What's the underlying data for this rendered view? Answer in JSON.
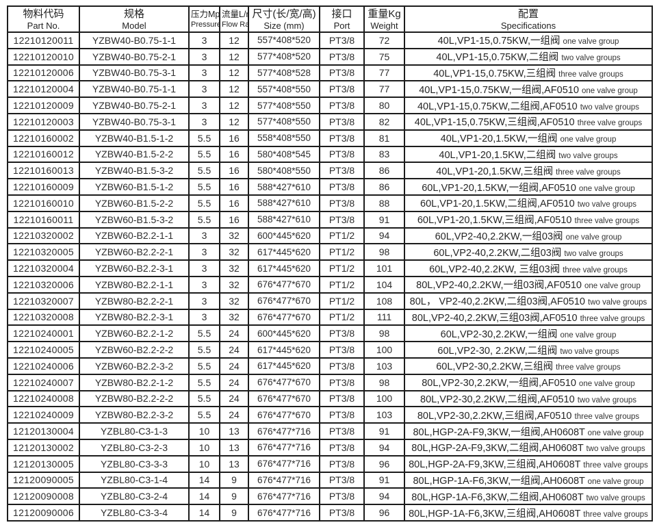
{
  "table": {
    "headers": [
      {
        "cn": "物料代码",
        "en": "Part No."
      },
      {
        "cn": "规格",
        "en": "Model"
      },
      {
        "cn": "压力Mpa",
        "en": "Pressure"
      },
      {
        "cn": "流量L/min",
        "en": "Flow Rate"
      },
      {
        "cn": "尺寸(长/宽/高)",
        "en": "Size (mm)"
      },
      {
        "cn": "接口",
        "en": "Port"
      },
      {
        "cn": "重量Kg",
        "en": "Weight"
      },
      {
        "cn": "配置",
        "en": "Specifications"
      }
    ],
    "rows": [
      {
        "part_no": "12210120011",
        "model": "YZBW40-B0.75-1-1",
        "pressure": "3",
        "flow_rate": "12",
        "size": "557*408*520",
        "port": "PT3/8",
        "weight": "72",
        "spec": "40L,VP1-15,0.75KW,一组阀",
        "spec_en": "one valve group"
      },
      {
        "part_no": "12210120010",
        "model": "YZBW40-B0.75-2-1",
        "pressure": "3",
        "flow_rate": "12",
        "size": "577*408*520",
        "port": "PT3/8",
        "weight": "75",
        "spec": "40L,VP1-15,0.75KW,二组阀",
        "spec_en": "two valve groups"
      },
      {
        "part_no": "12210120006",
        "model": "YZBW40-B0.75-3-1",
        "pressure": "3",
        "flow_rate": "12",
        "size": "577*408*528",
        "port": "PT3/8",
        "weight": "77",
        "spec": "40L,VP1-15,0.75KW,三组阀",
        "spec_en": "three valve groups"
      },
      {
        "part_no": "12210120004",
        "model": "YZBW40-B0.75-1-1",
        "pressure": "3",
        "flow_rate": "12",
        "size": "557*408*550",
        "port": "PT3/8",
        "weight": "77",
        "spec": "40L,VP1-15,0.75KW,一组阀,AF0510",
        "spec_en": "one valve group"
      },
      {
        "part_no": "12210120009",
        "model": "YZBW40-B0.75-2-1",
        "pressure": "3",
        "flow_rate": "12",
        "size": "577*408*550",
        "port": "PT3/8",
        "weight": "80",
        "spec": "40L,VP1-15,0.75KW,二组阀,AF0510",
        "spec_en": "two valve groups"
      },
      {
        "part_no": "12210120003",
        "model": "YZBW40-B0.75-3-1",
        "pressure": "3",
        "flow_rate": "12",
        "size": "577*408*550",
        "port": "PT3/8",
        "weight": "82",
        "spec": "40L,VP1-15,0.75KW,三组阀,AF0510",
        "spec_en": "three valve groups"
      },
      {
        "part_no": "12210160002",
        "model": "YZBW40-B1.5-1-2",
        "pressure": "5.5",
        "flow_rate": "16",
        "size": "558*408*550",
        "port": "PT3/8",
        "weight": "81",
        "spec": "40L,VP1-20,1.5KW,一组阀",
        "spec_en": "one valve group"
      },
      {
        "part_no": "12210160012",
        "model": "YZBW40-B1.5-2-2",
        "pressure": "5.5",
        "flow_rate": "16",
        "size": "580*408*545",
        "port": "PT3/8",
        "weight": "83",
        "spec": "40L,VP1-20,1.5KW,二组阀",
        "spec_en": "two valve groups"
      },
      {
        "part_no": "12210160013",
        "model": "YZBW40-B1.5-3-2",
        "pressure": "5.5",
        "flow_rate": "16",
        "size": "580*408*550",
        "port": "PT3/8",
        "weight": "86",
        "spec": "40L,VP1-20,1.5KW,三组阀",
        "spec_en": "three valve groups"
      },
      {
        "part_no": "12210160009",
        "model": "YZBW60-B1.5-1-2",
        "pressure": "5.5",
        "flow_rate": "16",
        "size": "588*427*610",
        "port": "PT3/8",
        "weight": "86",
        "spec": "60L,VP1-20,1.5KW,一组阀,AF0510",
        "spec_en": "one valve group"
      },
      {
        "part_no": "12210160010",
        "model": "YZBW60-B1.5-2-2",
        "pressure": "5.5",
        "flow_rate": "16",
        "size": "588*427*610",
        "port": "PT3/8",
        "weight": "88",
        "spec": "60L,VP1-20,1.5KW,二组阀,AF0510",
        "spec_en": "two valve groups"
      },
      {
        "part_no": "12210160011",
        "model": "YZBW60-B1.5-3-2",
        "pressure": "5.5",
        "flow_rate": "16",
        "size": "588*427*610",
        "port": "PT3/8",
        "weight": "91",
        "spec": "60L,VP1-20,1.5KW,三组阀,AF0510",
        "spec_en": "three valve groups"
      },
      {
        "part_no": "12210320002",
        "model": "YZBW60-B2.2-1-1",
        "pressure": "3",
        "flow_rate": "32",
        "size": "600*445*620",
        "port": "PT1/2",
        "weight": "94",
        "spec": "60L,VP2-40,2.2KW,一组03阀",
        "spec_en": "one valve group"
      },
      {
        "part_no": "12210320005",
        "model": "YZBW60-B2.2-2-1",
        "pressure": "3",
        "flow_rate": "32",
        "size": "617*445*620",
        "port": "PT1/2",
        "weight": "98",
        "spec": "60L,VP2-40,2.2KW,二组03阀",
        "spec_en": "two valve groups"
      },
      {
        "part_no": "12210320004",
        "model": "YZBW60-B2.2-3-1",
        "pressure": "3",
        "flow_rate": "32",
        "size": "617*445*620",
        "port": "PT1/2",
        "weight": "101",
        "spec": "60L,VP2-40,2.2KW, 三组03阀",
        "spec_en": "three valve groups"
      },
      {
        "part_no": "12210320006",
        "model": "YZBW80-B2.2-1-1",
        "pressure": "3",
        "flow_rate": "32",
        "size": "676*477*670",
        "port": "PT1/2",
        "weight": "104",
        "spec": "80L,VP2-40,2.2KW,一组03阀,AF0510",
        "spec_en": "one valve group"
      },
      {
        "part_no": "12210320007",
        "model": "YZBW80-B2.2-2-1",
        "pressure": "3",
        "flow_rate": "32",
        "size": "676*477*670",
        "port": "PT1/2",
        "weight": "108",
        "spec": "80L， VP2-40,2.2KW,二组03阀,AF0510",
        "spec_en": "two valve groups"
      },
      {
        "part_no": "12210320008",
        "model": "YZBW80-B2.2-3-1",
        "pressure": "3",
        "flow_rate": "32",
        "size": "676*477*670",
        "port": "PT1/2",
        "weight": "111",
        "spec": "80L,VP2-40,2.2KW,三组03阀,AF0510",
        "spec_en": "three valve groups"
      },
      {
        "part_no": "12210240001",
        "model": "YZBW60-B2.2-1-2",
        "pressure": "5.5",
        "flow_rate": "24",
        "size": "600*445*620",
        "port": "PT3/8",
        "weight": "98",
        "spec": "60L,VP2-30,2.2KW,一组阀",
        "spec_en": "one valve group"
      },
      {
        "part_no": "12210240005",
        "model": "YZBW60-B2.2-2-2",
        "pressure": "5.5",
        "flow_rate": "24",
        "size": "617*445*620",
        "port": "PT3/8",
        "weight": "100",
        "spec": "60L,VP2-30, 2.2KW,二组阀",
        "spec_en": "two valve groups"
      },
      {
        "part_no": "12210240006",
        "model": "YZBW60-B2.2-3-2",
        "pressure": "5.5",
        "flow_rate": "24",
        "size": "617*445*620",
        "port": "PT3/8",
        "weight": "103",
        "spec": "60L,VP2-30,2.2KW,三组阀",
        "spec_en": "three valve groups"
      },
      {
        "part_no": "12210240007",
        "model": "YZBW80-B2.2-1-2",
        "pressure": "5.5",
        "flow_rate": "24",
        "size": "676*477*670",
        "port": "PT3/8",
        "weight": "98",
        "spec": "80L,VP2-30,2.2KW,一组阀,AF0510",
        "spec_en": "one valve group"
      },
      {
        "part_no": "12210240008",
        "model": "YZBW80-B2.2-2-2",
        "pressure": "5.5",
        "flow_rate": "24",
        "size": "676*477*670",
        "port": "PT3/8",
        "weight": "100",
        "spec": "80L,VP2-30,2.2KW,二组阀,AF0510",
        "spec_en": "two valve groups"
      },
      {
        "part_no": "12210240009",
        "model": "YZBW80-B2.2-3-2",
        "pressure": "5.5",
        "flow_rate": "24",
        "size": "676*477*670",
        "port": "PT3/8",
        "weight": "103",
        "spec": "80L,VP2-30,2.2KW,三组阀,AF0510",
        "spec_en": "three valve groups"
      },
      {
        "part_no": "12120130004",
        "model": "YZBL80-C3-1-3",
        "pressure": "10",
        "flow_rate": "13",
        "size": "676*477*716",
        "port": "PT3/8",
        "weight": "91",
        "spec": "80L,HGP-2A-F9,3KW,一组阀,AH0608T",
        "spec_en": "one valve group"
      },
      {
        "part_no": "12120130002",
        "model": "YZBL80-C3-2-3",
        "pressure": "10",
        "flow_rate": "13",
        "size": "676*477*716",
        "port": "PT3/8",
        "weight": "94",
        "spec": "80L,HGP-2A-F9,3KW,二组阀,AH0608T",
        "spec_en": "two valve groups"
      },
      {
        "part_no": "12120130005",
        "model": "YZBL80-C3-3-3",
        "pressure": "10",
        "flow_rate": "13",
        "size": "676*477*716",
        "port": "PT3/8",
        "weight": "96",
        "spec": "80L,HGP-2A-F9,3KW,三组阀,AH0608T",
        "spec_en": "three valve groups"
      },
      {
        "part_no": "12120090005",
        "model": "YZBL80-C3-1-4",
        "pressure": "14",
        "flow_rate": "9",
        "size": "676*477*716",
        "port": "PT3/8",
        "weight": "91",
        "spec": "80L,HGP-1A-F6,3KW,一组阀,AH0608T",
        "spec_en": "one valve group"
      },
      {
        "part_no": "12120090008",
        "model": "YZBL80-C3-2-4",
        "pressure": "14",
        "flow_rate": "9",
        "size": "676*477*716",
        "port": "PT3/8",
        "weight": "94",
        "spec": "80L,HGP-1A-F6,3KW,二组阀,AH0608T",
        "spec_en": "two valve groups"
      },
      {
        "part_no": "12120090006",
        "model": "YZBL80-C3-3-4",
        "pressure": "14",
        "flow_rate": "9",
        "size": "676*477*716",
        "port": "PT3/8",
        "weight": "96",
        "spec": "80L,HGP-1A-F6,3KW,三组阀,AH0608T",
        "spec_en": "three valve groups"
      }
    ]
  },
  "colors": {
    "border": "#1c1c1c",
    "text": "#2a2a2a",
    "background": "#ffffff"
  }
}
